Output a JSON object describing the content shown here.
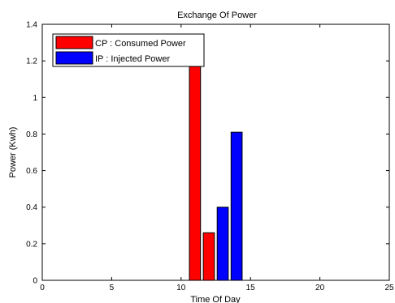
{
  "chart_data": {
    "type": "bar",
    "title": "Exchange Of Power",
    "xlabel": "Time Of Day",
    "ylabel": "Power (Kwh)",
    "xlim": [
      0,
      25
    ],
    "ylim": [
      0,
      1.4
    ],
    "xticks": [
      "0",
      "5",
      "10",
      "15",
      "20",
      "25"
    ],
    "yticks": [
      "0",
      "0.2",
      "0.4",
      "0.6",
      "0.8",
      "1",
      "1.2",
      "1.4"
    ],
    "grid": false,
    "legend_position": "top-left",
    "series": [
      {
        "name": "CP : Consumed Power",
        "color": "#ff0000",
        "x": [
          11,
          12
        ],
        "values": [
          1.2,
          0.26
        ]
      },
      {
        "name": "IP : Injected Power",
        "color": "#0000ff",
        "x": [
          13,
          14
        ],
        "values": [
          0.4,
          0.81
        ]
      }
    ]
  }
}
